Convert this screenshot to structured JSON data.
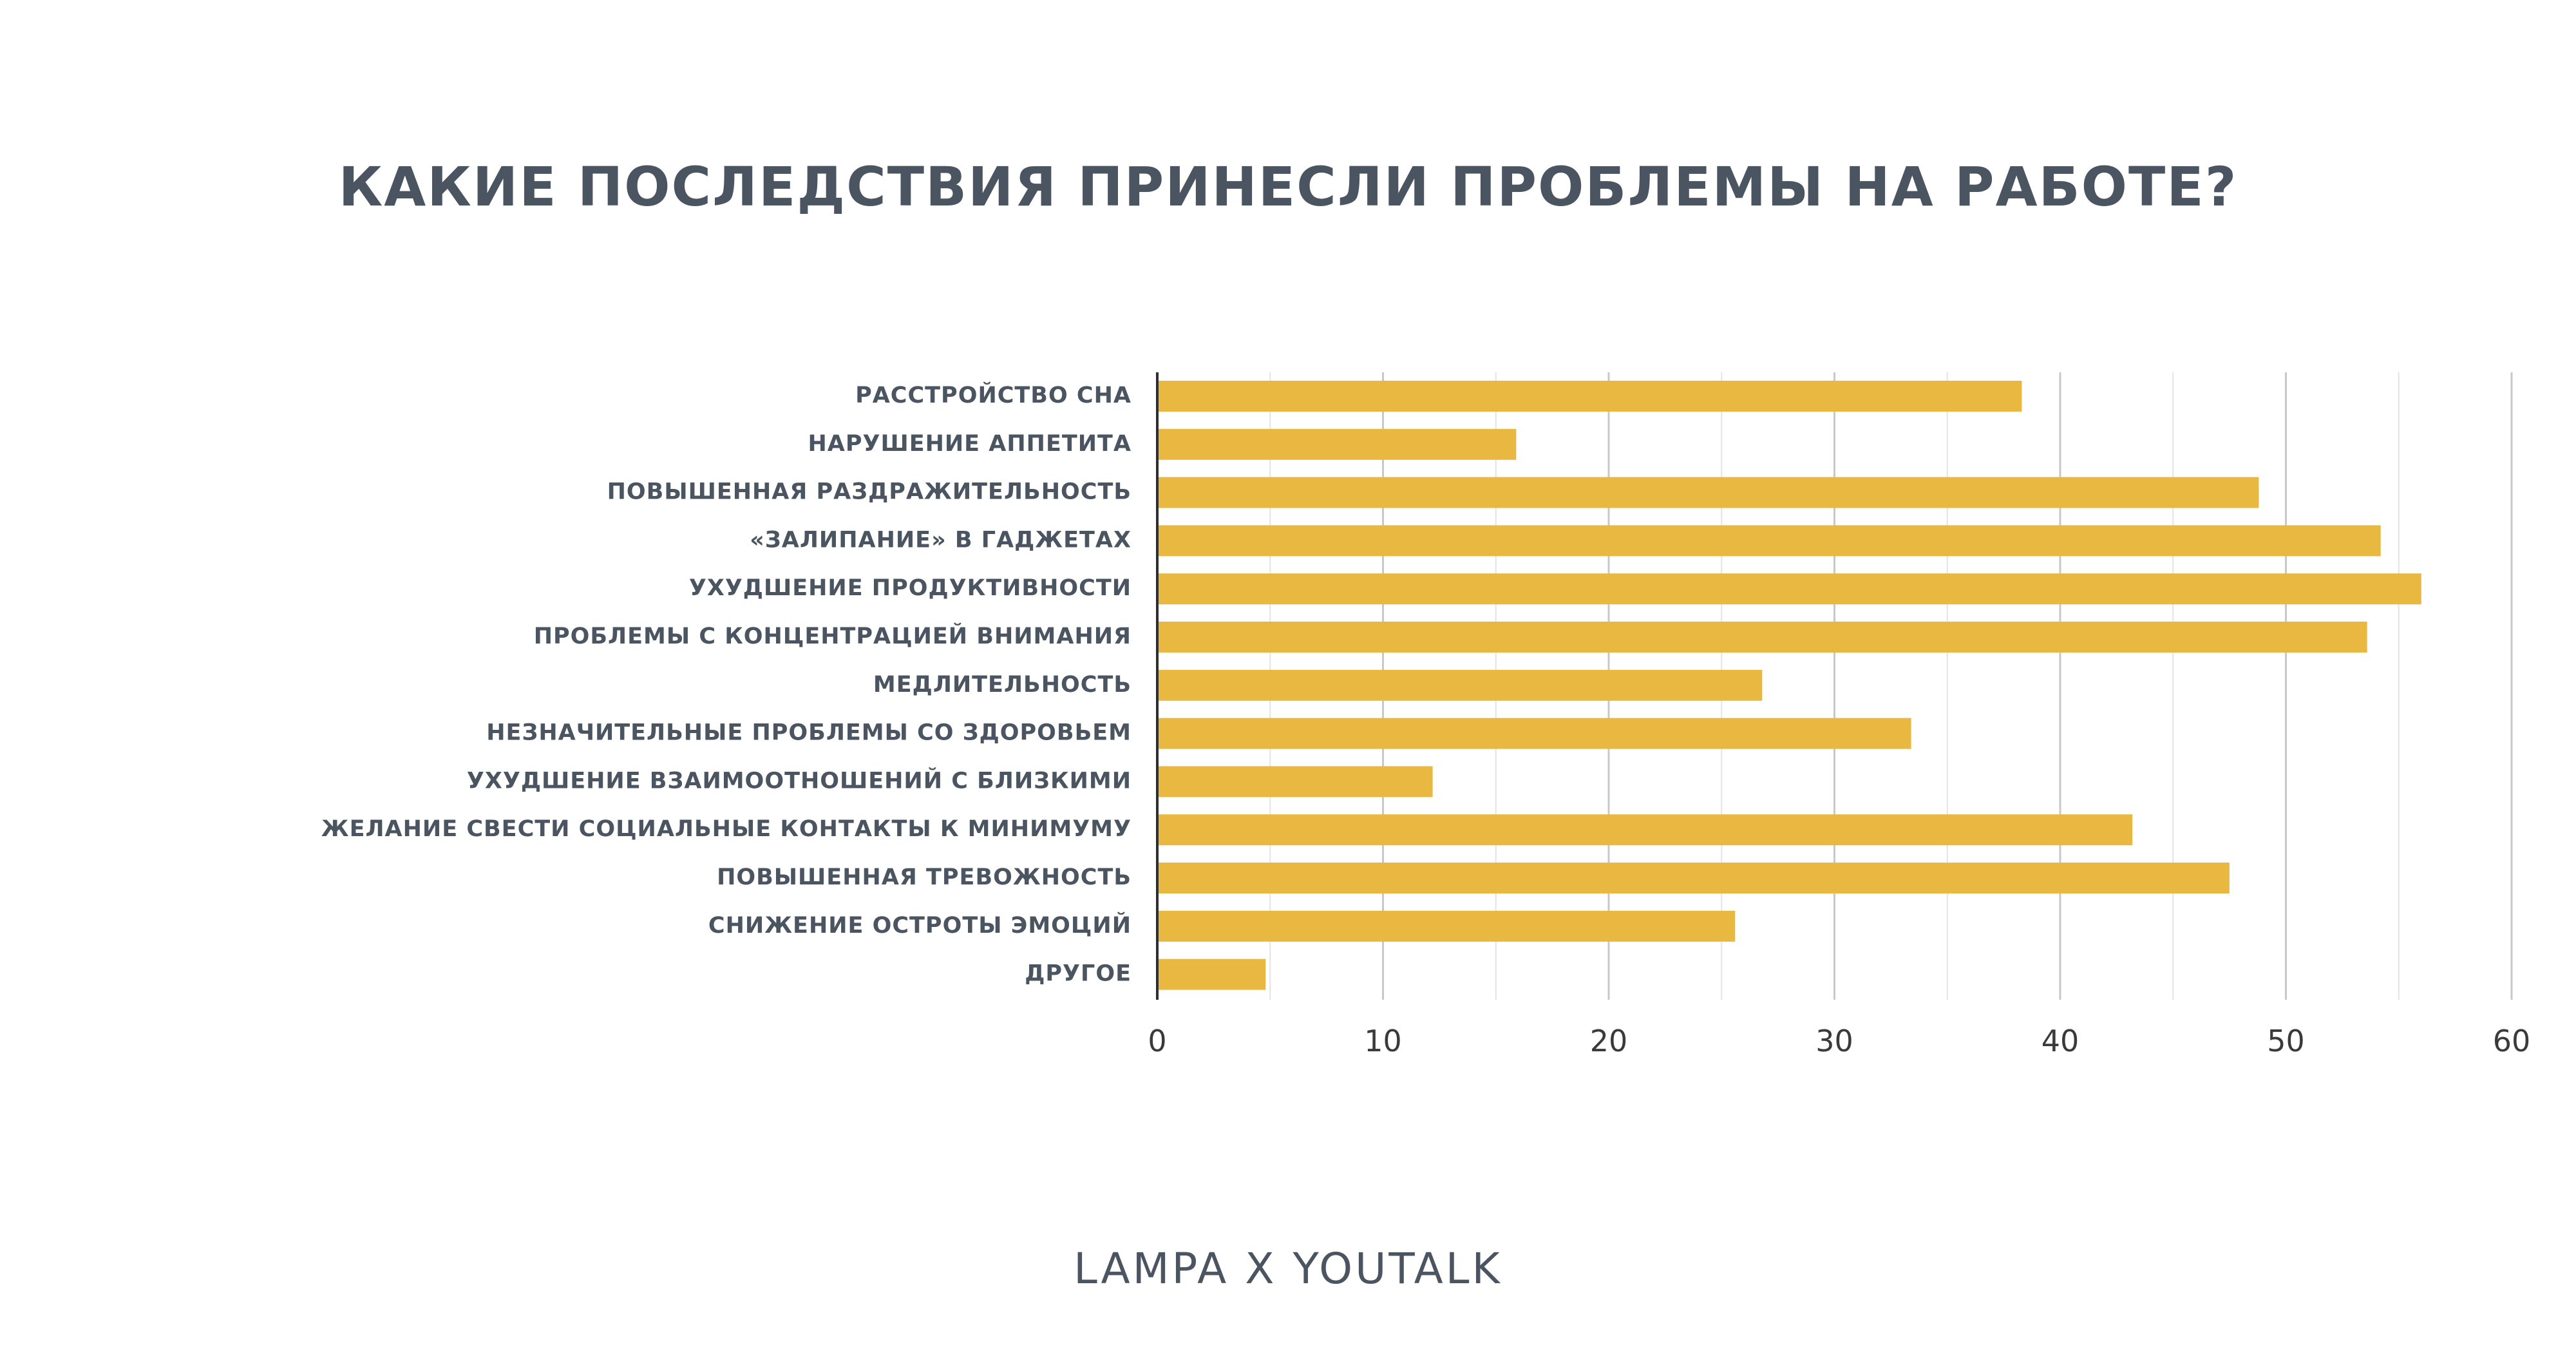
{
  "title": "КАКИЕ ПОСЛЕДСТВИЯ ПРИНЕСЛИ ПРОБЛЕМЫ НА РАБОТЕ?",
  "footer": "LAMPA X YOUTALK",
  "colors": {
    "bar": "#e8b840",
    "text": "#4a5561",
    "grid": "#d4d4d4",
    "axis": "#2f2f2f"
  },
  "chart_data": {
    "type": "bar",
    "orientation": "horizontal",
    "categories": [
      "РАССТРОЙСТВО СНА",
      "НАРУШЕНИЕ АППЕТИТА",
      "ПОВЫШЕННАЯ РАЗДРАЖИТЕЛЬНОСТЬ",
      "«ЗАЛИПАНИЕ» В ГАДЖЕТАХ",
      "УХУДШЕНИЕ ПРОДУКТИВНОСТИ",
      "ПРОБЛЕМЫ С КОНЦЕНТРАЦИЕЙ ВНИМАНИЯ",
      "МЕДЛИТЕЛЬНОСТЬ",
      "НЕЗНАЧИТЕЛЬНЫЕ ПРОБЛЕМЫ СО ЗДОРОВЬЕМ",
      "УХУДШЕНИЕ ВЗАИМООТНОШЕНИЙ С БЛИЗКИМИ",
      "ЖЕЛАНИЕ СВЕСТИ СОЦИАЛЬНЫЕ КОНТАКТЫ К МИНИМУМУ",
      "ПОВЫШЕННАЯ ТРЕВОЖНОСТЬ",
      "СНИЖЕНИЕ ОСТРОТЫ ЭМОЦИЙ",
      "ДРУГОЕ"
    ],
    "values": [
      38.3,
      15.9,
      48.8,
      54.2,
      56.0,
      53.6,
      26.8,
      33.4,
      12.2,
      43.2,
      47.5,
      25.6,
      4.8
    ],
    "xlim": [
      0,
      60
    ],
    "xticks": [
      0,
      10,
      20,
      30,
      40,
      50,
      60
    ],
    "grid": true,
    "legend": "none"
  }
}
